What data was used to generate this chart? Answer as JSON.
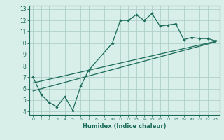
{
  "xlabel": "Humidex (Indice chaleur)",
  "bg_color": "#d8eee8",
  "grid_color": "#b0cfca",
  "line_color": "#1a6b5a",
  "xlim": [
    -0.5,
    23.5
  ],
  "ylim": [
    3.7,
    13.3
  ],
  "xticks": [
    0,
    1,
    2,
    3,
    4,
    5,
    6,
    7,
    8,
    9,
    10,
    11,
    12,
    13,
    14,
    15,
    16,
    17,
    18,
    19,
    20,
    21,
    22,
    23
  ],
  "yticks": [
    4,
    5,
    6,
    7,
    8,
    9,
    10,
    11,
    12,
    13
  ],
  "main_x": [
    0,
    1,
    2,
    3,
    4,
    5,
    6,
    7,
    10,
    11,
    12,
    13,
    14,
    15,
    16,
    17,
    18,
    19,
    20,
    21,
    22,
    23
  ],
  "main_y": [
    7.0,
    5.5,
    4.8,
    4.4,
    5.3,
    4.1,
    6.2,
    7.6,
    10.0,
    12.0,
    12.0,
    12.5,
    12.0,
    12.6,
    11.5,
    11.6,
    11.7,
    10.3,
    10.5,
    10.4,
    10.4,
    10.2
  ],
  "line1_x": [
    0,
    23
  ],
  "line1_y": [
    5.8,
    10.1
  ],
  "line2_x": [
    0,
    23
  ],
  "line2_y": [
    6.5,
    10.15
  ]
}
